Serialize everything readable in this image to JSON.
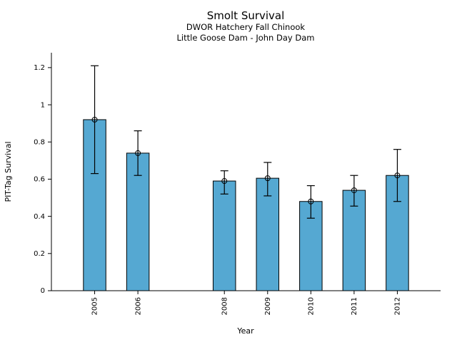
{
  "chart_data": {
    "type": "bar",
    "title": "Smolt Survival",
    "subtitle1": "DWOR Hatchery Fall Chinook",
    "subtitle2": "Little Goose Dam - John Day Dam",
    "xlabel": "Year",
    "ylabel": "PIT-Tag Survival",
    "categories": [
      2005,
      2006,
      2008,
      2009,
      2010,
      2011,
      2012
    ],
    "values": [
      0.92,
      0.74,
      0.59,
      0.605,
      0.48,
      0.54,
      0.62
    ],
    "error_low": [
      0.63,
      0.62,
      0.52,
      0.51,
      0.39,
      0.455,
      0.48
    ],
    "error_high": [
      1.21,
      0.86,
      0.645,
      0.69,
      0.565,
      0.62,
      0.76
    ],
    "xlim": [
      2004,
      2013
    ],
    "ylim": [
      0,
      1.28
    ],
    "yticks": [
      0,
      0.2,
      0.4,
      0.6,
      0.8,
      1,
      1.2
    ],
    "ytick_labels": [
      "0",
      "0.2",
      "0.4",
      "0.6",
      "0.8",
      "1",
      "1.2"
    ],
    "bar_color": "#55a8d2",
    "bar_edge_color": "#000000",
    "axis_color": "#000000",
    "bar_width_years": 0.52,
    "marker": "open-circle",
    "grid": false,
    "legend": null
  }
}
